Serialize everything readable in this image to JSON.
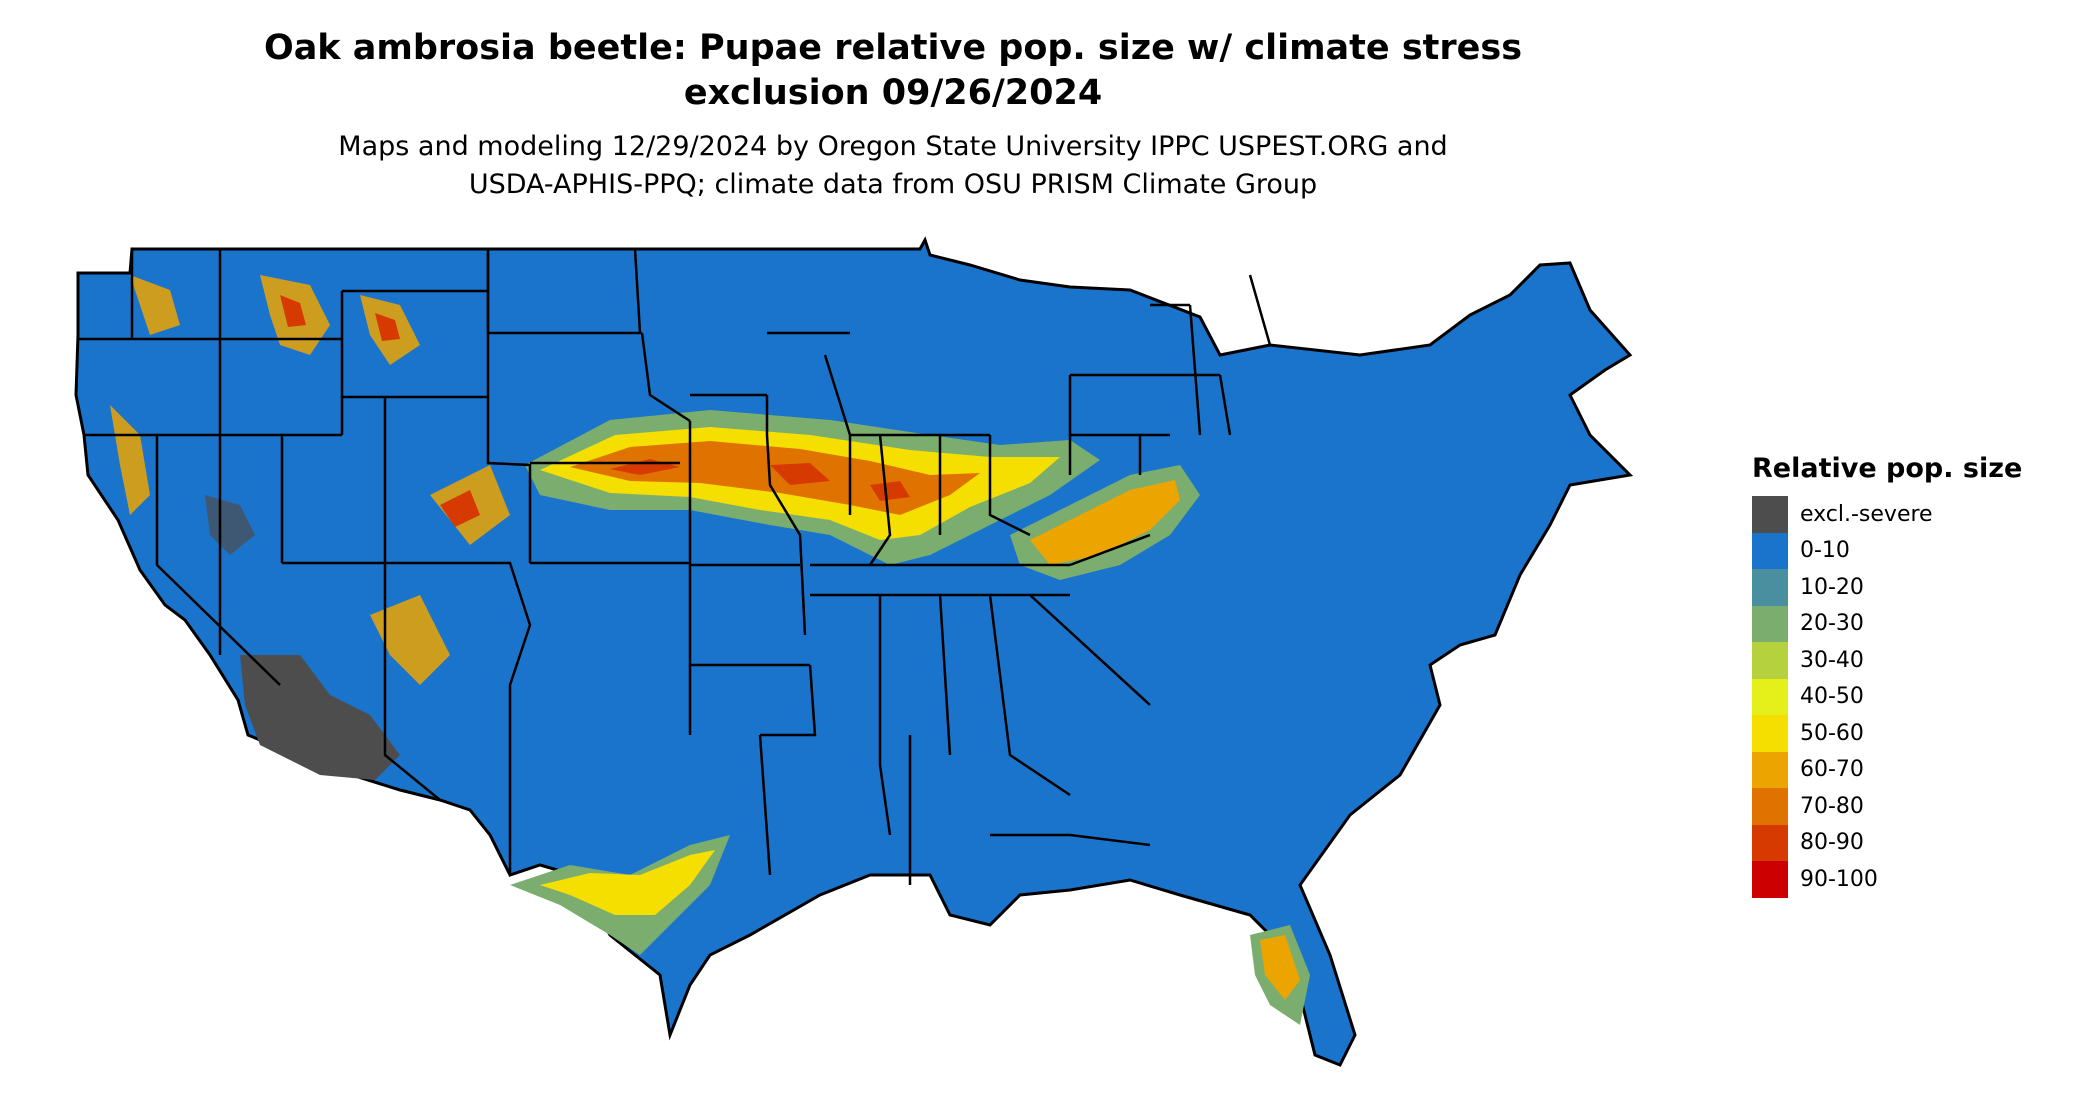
{
  "title_line1": "Oak ambrosia beetle: Pupae relative pop. size w/ climate stress",
  "title_line2": "exclusion 09/26/2024",
  "subtitle_line1": "Maps and modeling 12/29/2024 by Oregon State University IPPC USPEST.ORG and",
  "subtitle_line2": "USDA-APHIS-PPQ; climate data from OSU PRISM Climate Group",
  "legend": {
    "title": "Relative pop. size",
    "items": [
      {
        "label": "excl.-severe",
        "color": "#4d4d4d"
      },
      {
        "label": "0-10",
        "color": "#1b74cc"
      },
      {
        "label": "10-20",
        "color": "#4a8fa0"
      },
      {
        "label": "20-30",
        "color": "#7bae6e"
      },
      {
        "label": "30-40",
        "color": "#b5d23e"
      },
      {
        "label": "40-50",
        "color": "#e5ef1a"
      },
      {
        "label": "50-60",
        "color": "#f5df00"
      },
      {
        "label": "60-70",
        "color": "#eca400"
      },
      {
        "label": "70-80",
        "color": "#e07300"
      },
      {
        "label": "80-90",
        "color": "#d63a00"
      },
      {
        "label": "90-100",
        "color": "#cc0000"
      }
    ]
  }
}
